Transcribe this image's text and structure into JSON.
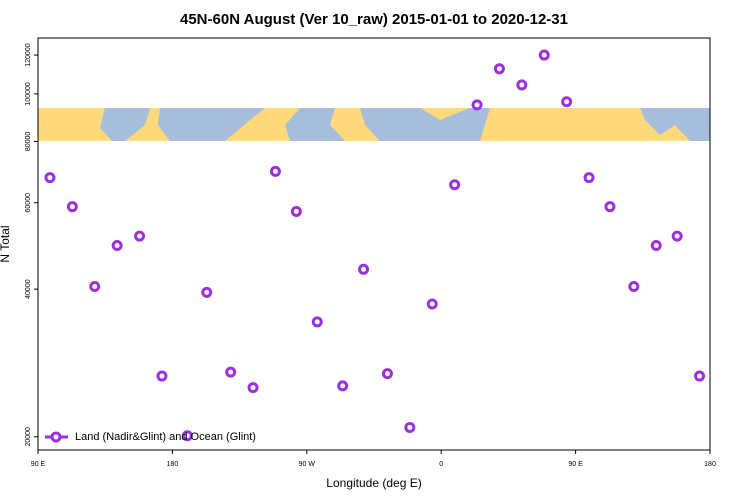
{
  "chart_data": {
    "type": "scatter",
    "title": "45N-60N August (Ver 10_raw)   2015-01-01 to 2020-12-31",
    "x_label": "Longitude (deg E)",
    "y_label": "N Total",
    "log_y": true,
    "legend": "bottom-left",
    "xlim": [
      90,
      540
    ],
    "ylim": [
      18800,
      130000
    ],
    "xticks": [
      {
        "value": 90,
        "label": "90 E"
      },
      {
        "value": 180,
        "label": "180"
      },
      {
        "value": 270,
        "label": "90 W"
      },
      {
        "value": 360,
        "label": "0"
      },
      {
        "value": 450,
        "label": "90 E"
      },
      {
        "value": 540,
        "label": "180"
      }
    ],
    "yticks": [
      20000,
      40000,
      60000,
      80000,
      100000,
      120000
    ],
    "series": [
      {
        "name": "Land (Nadir&Glint) and Ocean (Glint)",
        "color": "#9b30e0",
        "x": [
          98,
          113,
          128,
          143,
          158,
          173,
          190,
          203,
          219,
          234,
          249,
          263,
          277,
          294,
          308,
          324,
          339,
          354,
          369,
          384,
          399,
          414,
          429,
          444,
          459,
          473,
          489,
          504,
          518,
          533
        ],
        "values": [
          67500,
          58900,
          40500,
          49100,
          51300,
          26600,
          20100,
          39400,
          27100,
          25200,
          69500,
          57600,
          34300,
          25400,
          43900,
          26900,
          20900,
          37300,
          65300,
          95000,
          112500,
          104300,
          120000,
          96400,
          67500,
          58900,
          40500,
          49100,
          51300,
          26600
        ]
      }
    ]
  }
}
